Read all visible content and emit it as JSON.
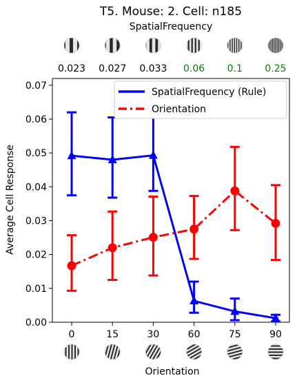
{
  "chart_data": {
    "type": "line",
    "title": "T5. Mouse: 2. Cell: n185",
    "top_axis": {
      "label": "SpatialFrequency",
      "ticks": [
        {
          "label": "0.023",
          "color": "#000000"
        },
        {
          "label": "0.027",
          "color": "#000000"
        },
        {
          "label": "0.033",
          "color": "#000000"
        },
        {
          "label": "0.06",
          "color": "#008000"
        },
        {
          "label": "0.1",
          "color": "#008000"
        },
        {
          "label": "0.25",
          "color": "#008000"
        }
      ]
    },
    "xlabel": "Orientation",
    "ylabel": "Average Cell Response",
    "x": [
      0,
      15,
      30,
      60,
      75,
      90
    ],
    "x_tick_labels": [
      "0",
      "15",
      "30",
      "60",
      "75",
      "90"
    ],
    "ylim": [
      0,
      0.072
    ],
    "y_ticks": [
      0.0,
      0.01,
      0.02,
      0.03,
      0.04,
      0.05,
      0.06,
      0.07
    ],
    "y_tick_labels": [
      "0.00",
      "0.01",
      "0.02",
      "0.03",
      "0.04",
      "0.05",
      "0.06",
      "0.07"
    ],
    "legend_position": "top-right",
    "series": [
      {
        "name": "SpatialFrequency (Rule)",
        "color": "#0000ff",
        "line_style": "solid",
        "marker": "triangle",
        "values": [
          0.0492,
          0.048,
          0.0493,
          0.0063,
          0.0032,
          0.0012
        ],
        "err_low": [
          0.0375,
          0.0368,
          0.0388,
          0.0028,
          0.0006,
          0.0002
        ],
        "err_high": [
          0.062,
          0.0605,
          0.0617,
          0.012,
          0.007,
          0.0022
        ]
      },
      {
        "name": "Orientation",
        "color": "#ff0000",
        "line_style": "dashdot",
        "marker": "circle",
        "values": [
          0.0167,
          0.022,
          0.0251,
          0.0275,
          0.0388,
          0.0292
        ],
        "err_low": [
          0.0093,
          0.0125,
          0.0138,
          0.0187,
          0.0272,
          0.0184
        ],
        "err_high": [
          0.0257,
          0.0327,
          0.0371,
          0.0373,
          0.0518,
          0.0405
        ]
      }
    ]
  }
}
